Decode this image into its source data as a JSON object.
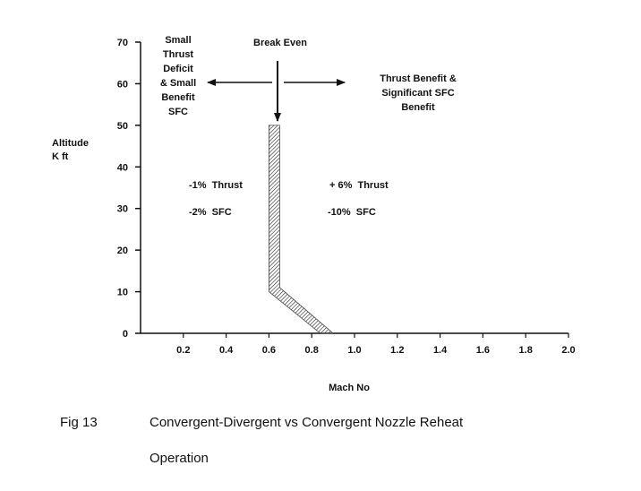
{
  "chart_data": {
    "type": "area",
    "x_axis": {
      "label": "Mach No",
      "range": [
        0,
        2.0
      ],
      "ticks": [
        0.2,
        0.4,
        0.6,
        0.8,
        1.0,
        1.2,
        1.4,
        1.6,
        1.8,
        2.0
      ],
      "tick_labels": [
        "0.2",
        "0.4",
        "0.6",
        "0.8",
        "1.0",
        "1.2",
        "1.4",
        "1.6",
        "1.8",
        "2.0"
      ]
    },
    "y_axis": {
      "label_line1": "Altitude",
      "label_line2": "K ft",
      "range": [
        0,
        70
      ],
      "ticks": [
        0,
        10,
        20,
        30,
        40,
        50,
        60,
        70
      ],
      "tick_labels": [
        "0",
        "10",
        "20",
        "30",
        "40",
        "50",
        "60",
        "70"
      ]
    },
    "break_even_band": {
      "name": "Break Even",
      "left_boundary": [
        {
          "mach": 0.6,
          "alt": 50
        },
        {
          "mach": 0.6,
          "alt": 10
        },
        {
          "mach": 0.84,
          "alt": 0
        }
      ],
      "right_boundary": [
        {
          "mach": 0.65,
          "alt": 50
        },
        {
          "mach": 0.65,
          "alt": 11
        },
        {
          "mach": 0.9,
          "alt": 0
        }
      ]
    },
    "annotations": {
      "left_region": [
        "Small",
        "Thrust",
        "Deficit",
        "& Small",
        "Benefit",
        "SFC"
      ],
      "right_region": [
        "Thrust Benefit &",
        "Significant SFC",
        "Benefit"
      ],
      "left_thrust": "-1%  Thrust",
      "left_sfc": "-2%  SFC",
      "right_thrust": "+ 6%  Thrust",
      "right_sfc": "-10%  SFC"
    },
    "grid": false,
    "legend": "none"
  },
  "caption": {
    "fig_number": "Fig 13",
    "title_line1": "Convergent-Divergent vs Convergent Nozzle Reheat",
    "title_line2": "Operation"
  }
}
